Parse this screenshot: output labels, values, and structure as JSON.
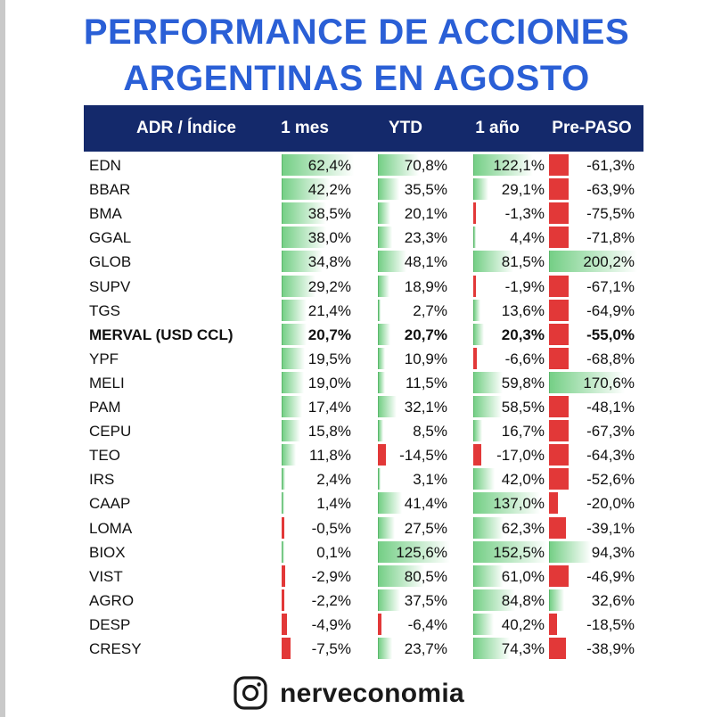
{
  "title": {
    "line1": "PERFORMANCE DE ACCIONES",
    "line2": "ARGENTINAS EN AGOSTO"
  },
  "columns": [
    "ADR / Índice",
    "1 mes",
    "YTD",
    "1 año",
    "Pre-PASO"
  ],
  "chart_data": {
    "type": "table",
    "title": "PERFORMANCE DE ACCIONES ARGENTINAS EN AGOSTO",
    "units": "%",
    "column_keys": [
      "m1",
      "ytd",
      "y1",
      "pp"
    ],
    "scales": {
      "m1": 62.4,
      "ytd": 125.6,
      "y1": 152.5,
      "pp": 200.2
    },
    "rows": [
      {
        "name": "EDN",
        "bold": false,
        "m1": 62.4,
        "ytd": 70.8,
        "y1": 122.1,
        "pp": -61.3
      },
      {
        "name": "BBAR",
        "bold": false,
        "m1": 42.2,
        "ytd": 35.5,
        "y1": 29.1,
        "pp": -63.9
      },
      {
        "name": "BMA",
        "bold": false,
        "m1": 38.5,
        "ytd": 20.1,
        "y1": -1.3,
        "pp": -75.5
      },
      {
        "name": "GGAL",
        "bold": false,
        "m1": 38.0,
        "ytd": 23.3,
        "y1": 4.4,
        "pp": -71.8
      },
      {
        "name": "GLOB",
        "bold": false,
        "m1": 34.8,
        "ytd": 48.1,
        "y1": 81.5,
        "pp": 200.2
      },
      {
        "name": "SUPV",
        "bold": false,
        "m1": 29.2,
        "ytd": 18.9,
        "y1": -1.9,
        "pp": -67.1
      },
      {
        "name": "TGS",
        "bold": false,
        "m1": 21.4,
        "ytd": 2.7,
        "y1": 13.6,
        "pp": -64.9
      },
      {
        "name": "MERVAL (USD CCL)",
        "bold": true,
        "m1": 20.7,
        "ytd": 20.7,
        "y1": 20.3,
        "pp": -55.0
      },
      {
        "name": "YPF",
        "bold": false,
        "m1": 19.5,
        "ytd": 10.9,
        "y1": -6.6,
        "pp": -68.8
      },
      {
        "name": "MELI",
        "bold": false,
        "m1": 19.0,
        "ytd": 11.5,
        "y1": 59.8,
        "pp": 170.6
      },
      {
        "name": "PAM",
        "bold": false,
        "m1": 17.4,
        "ytd": 32.1,
        "y1": 58.5,
        "pp": -48.1
      },
      {
        "name": "CEPU",
        "bold": false,
        "m1": 15.8,
        "ytd": 8.5,
        "y1": 16.7,
        "pp": -67.3
      },
      {
        "name": "TEO",
        "bold": false,
        "m1": 11.8,
        "ytd": -14.5,
        "y1": -17.0,
        "pp": -64.3
      },
      {
        "name": "IRS",
        "bold": false,
        "m1": 2.4,
        "ytd": 3.1,
        "y1": 42.0,
        "pp": -52.6
      },
      {
        "name": "CAAP",
        "bold": false,
        "m1": 1.4,
        "ytd": 41.4,
        "y1": 137.0,
        "pp": -20.0
      },
      {
        "name": "LOMA",
        "bold": false,
        "m1": -0.5,
        "ytd": 27.5,
        "y1": 62.3,
        "pp": -39.1
      },
      {
        "name": "BIOX",
        "bold": false,
        "m1": 0.1,
        "ytd": 125.6,
        "y1": 152.5,
        "pp": 94.3
      },
      {
        "name": "VIST",
        "bold": false,
        "m1": -2.9,
        "ytd": 80.5,
        "y1": 61.0,
        "pp": -46.9
      },
      {
        "name": "AGRO",
        "bold": false,
        "m1": -2.2,
        "ytd": 37.5,
        "y1": 84.8,
        "pp": 32.6
      },
      {
        "name": "DESP",
        "bold": false,
        "m1": -4.9,
        "ytd": -6.4,
        "y1": 40.2,
        "pp": -18.5
      },
      {
        "name": "CRESY",
        "bold": false,
        "m1": -7.5,
        "ytd": 23.7,
        "y1": 74.3,
        "pp": -38.9
      }
    ]
  },
  "colors": {
    "title": "#2a5fd6",
    "header_bg": "#14296b",
    "positive_bar": "#75cf86",
    "negative_bar": "#e23838"
  },
  "footer": {
    "icon": "instagram-icon",
    "handle": "nerveconomia"
  }
}
